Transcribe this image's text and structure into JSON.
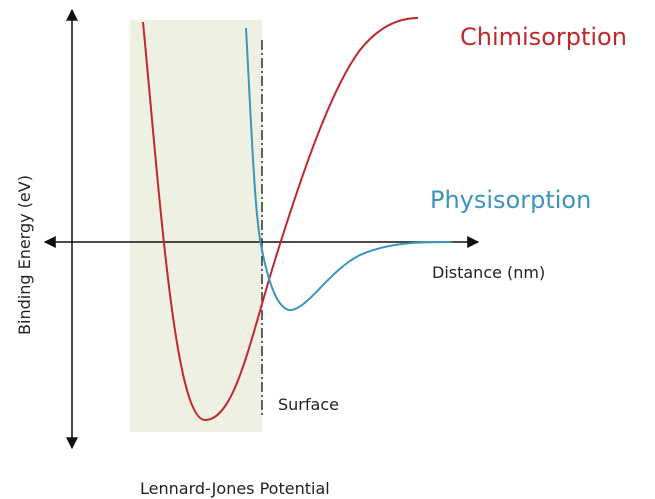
{
  "labels": {
    "chemisorption": "Chimisorption",
    "physisorption": "Physisorption",
    "x_axis": "Distance (nm)",
    "y_axis": "Binding Energy (eV)",
    "surface": "Surface",
    "caption": "Lennard-Jones Potential"
  }
}
